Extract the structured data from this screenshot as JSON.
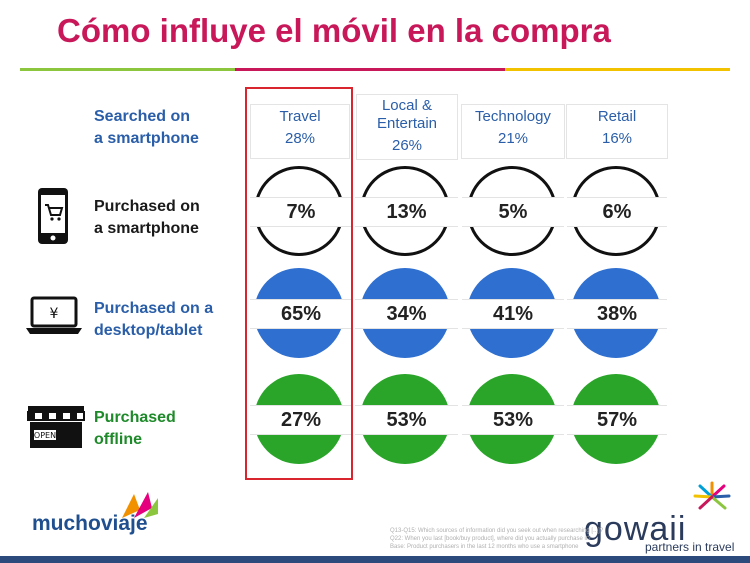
{
  "title": "Cómo influye el móvil en la compra",
  "colors": {
    "title": "#c8185a",
    "searched": "#2a5ea8",
    "smartphone": "#1a1a1a",
    "desktop": "#2a5ea8",
    "offline": "#1e8a2a",
    "circle_black": "#111111",
    "circle_blue": "#2f6fd0",
    "circle_green": "#2aa52a",
    "highlight": "#d9262e"
  },
  "rows": {
    "searched": {
      "line1": "Searched on",
      "line2": "a smartphone"
    },
    "smartphone": {
      "line1": "Purchased on",
      "line2": "a smartphone",
      "icon": "smartphone-cart-icon"
    },
    "desktop": {
      "line1": "Purchased on a",
      "line2": "desktop/tablet",
      "icon": "laptop-yen-icon"
    },
    "offline": {
      "line1": "Purchased",
      "line2": "offline",
      "icon": "storefront-open-icon",
      "sign": "OPEN"
    }
  },
  "categories": [
    {
      "name": "Travel",
      "name2": "",
      "searched": "28%",
      "smartphone": "7%",
      "desktop": "65%",
      "offline": "27%"
    },
    {
      "name": "Local &",
      "name2": "Entertain",
      "searched": "26%",
      "smartphone": "13%",
      "desktop": "34%",
      "offline": "53%"
    },
    {
      "name": "Technology",
      "name2": "",
      "searched": "21%",
      "smartphone": "5%",
      "desktop": "41%",
      "offline": "53%"
    },
    {
      "name": "Retail",
      "name2": "",
      "searched": "16%",
      "smartphone": "6%",
      "desktop": "38%",
      "offline": "57%"
    }
  ],
  "logos": {
    "left": "muchoviaje",
    "right": "gowaii",
    "right_sub": "partners in travel"
  },
  "footnote": {
    "line1": "Q13-Q15: Which sources of information did you seek out when researching [...]?",
    "line2": "Q22: When you last [book/buy product], where did you actually purchase it?",
    "line3": "Base: Product purchasers in the last 12 months who use a smartphone"
  }
}
